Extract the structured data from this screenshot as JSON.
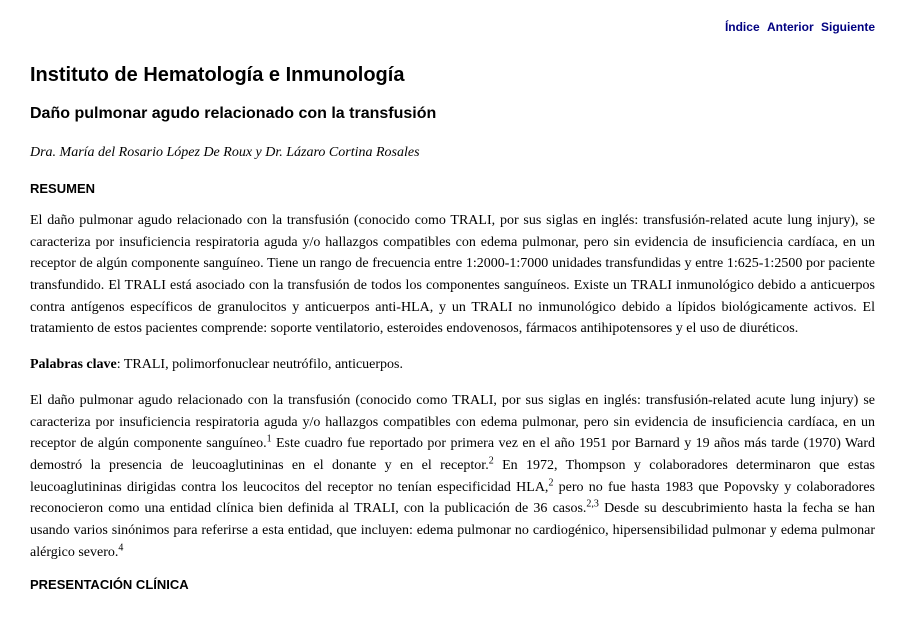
{
  "nav": {
    "indice": "Índice",
    "anterior": "Anterior",
    "siguiente": "Siguiente"
  },
  "institution": "Instituto de Hematología e Inmunología",
  "title": "Daño pulmonar agudo relacionado con la transfusión",
  "authors": "Dra. María del Rosario López De Roux y Dr. Lázaro Cortina Rosales",
  "sections": {
    "resumen_title": "RESUMEN",
    "resumen_body": "El daño pulmonar agudo relacionado con la transfusión (conocido como TRALI, por sus siglas en inglés: transfusión-related acute lung injury), se caracteriza por insuficiencia respiratoria aguda y/o hallazgos compatibles con edema pulmonar, pero sin evidencia de insuficiencia cardíaca, en un receptor de algún componente sanguíneo. Tiene un rango de frecuencia entre 1:2000-1:7000 unidades transfundidas y entre 1:625-1:2500 por paciente transfundido. El TRALI está asociado con la transfusión de todos los componentes sanguíneos. Existe un TRALI inmunológico debido a anticuerpos contra antígenos específicos de granulocitos y anticuerpos anti-HLA, y un TRALI no inmunológico debido a lípidos biológicamente activos. El tratamiento de estos pacientes comprende: soporte ventilatorio, esteroides endovenosos, fármacos antihipotensores y el uso de diuréticos.",
    "keywords_label": "Palabras clave",
    "keywords_body": ": TRALI, polimorfonuclear neutrófilo, anticuerpos.",
    "intro_part1": "El daño pulmonar agudo relacionado con la transfusión (conocido como TRALI, por sus siglas en inglés: transfusión-related acute lung injury) se caracteriza por insuficiencia respiratoria aguda y/o hallazgos compatibles con edema pulmonar, pero sin evidencia de insuficiencia cardíaca, en un receptor de algún componente sanguíneo.",
    "intro_part2": " Este cuadro fue reportado por primera vez en el año 1951 por Barnard y 19 años más tarde (1970) Ward demostró la presencia de leucoaglutininas en el donante y en el receptor.",
    "intro_part3": " En 1972, Thompson y colaboradores determinaron que estas leucoaglutininas dirigidas contra los leucocitos del receptor no tenían especificidad HLA,",
    "intro_part4": " pero no fue hasta 1983 que Popovsky y colaboradores reconocieron como una entidad clínica bien definida al TRALI, con la publicación de 36 casos.",
    "intro_part5": " Desde su descubrimiento hasta la fecha se han usando varios sinónimos para referirse a esta entidad, que incluyen: edema pulmonar no cardiogénico, hipersensibilidad pulmonar y edema pulmonar alérgico severo.",
    "ref1": "1",
    "ref2a": "2",
    "ref2b": "2",
    "ref23": "2,3",
    "ref4": "4",
    "presentacion_title": "PRESENTACIÓN CLÍNICA"
  }
}
